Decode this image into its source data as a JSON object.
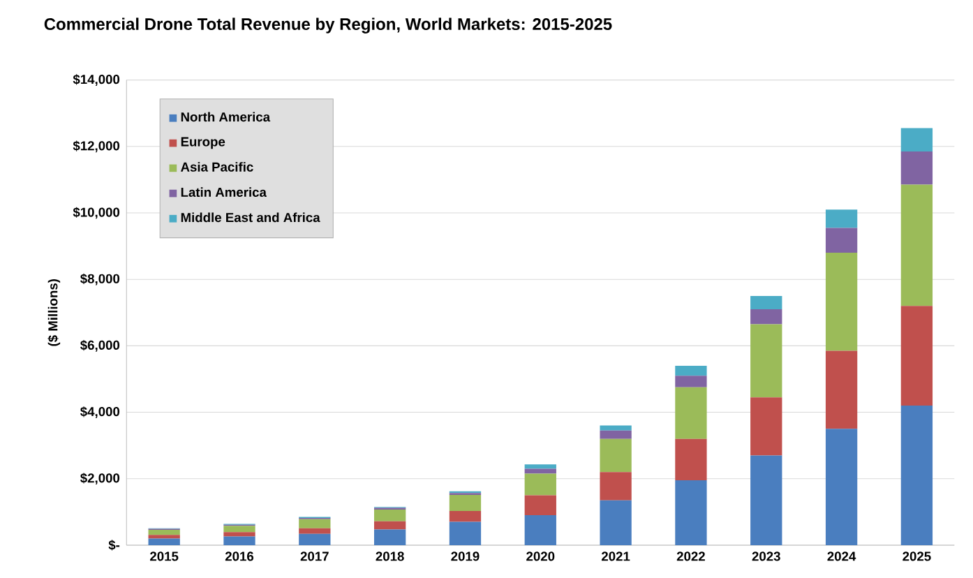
{
  "chart_data": {
    "type": "bar",
    "stacked": true,
    "title": "Commercial Drone Total Revenue by Region, World Markets: 2015-2025",
    "ylabel": "($ Millions)",
    "categories": [
      "2015",
      "2016",
      "2017",
      "2018",
      "2019",
      "2020",
      "2021",
      "2022",
      "2023",
      "2024",
      "2025"
    ],
    "series": [
      {
        "name": "North America",
        "color": "#4a7ebf",
        "values": [
          200,
          260,
          340,
          470,
          700,
          900,
          1350,
          1950,
          2700,
          3500,
          4200
        ]
      },
      {
        "name": "Europe",
        "color": "#c0504d",
        "values": [
          110,
          130,
          170,
          250,
          330,
          600,
          850,
          1250,
          1750,
          2350,
          3000
        ]
      },
      {
        "name": "Asia Pacific",
        "color": "#9bbb59",
        "values": [
          150,
          190,
          270,
          350,
          480,
          650,
          1000,
          1550,
          2200,
          2950,
          3650
        ]
      },
      {
        "name": "Latin America",
        "color": "#8064a2",
        "values": [
          30,
          35,
          40,
          50,
          60,
          150,
          250,
          350,
          450,
          750,
          1000
        ]
      },
      {
        "name": "Middle East and Africa",
        "color": "#4bacc6",
        "values": [
          20,
          25,
          30,
          30,
          50,
          130,
          150,
          300,
          400,
          550,
          700
        ]
      }
    ],
    "ylim": [
      0,
      14000
    ],
    "yticks": [
      {
        "value": 0,
        "label": "$-"
      },
      {
        "value": 2000,
        "label": "$2,000"
      },
      {
        "value": 4000,
        "label": "$4,000"
      },
      {
        "value": 6000,
        "label": "$6,000"
      },
      {
        "value": 8000,
        "label": "$8,000"
      },
      {
        "value": 10000,
        "label": "$10,000"
      },
      {
        "value": 12000,
        "label": "$12,000"
      },
      {
        "value": 14000,
        "label": "$14,000"
      }
    ],
    "grid": "y",
    "legend": "top left"
  }
}
